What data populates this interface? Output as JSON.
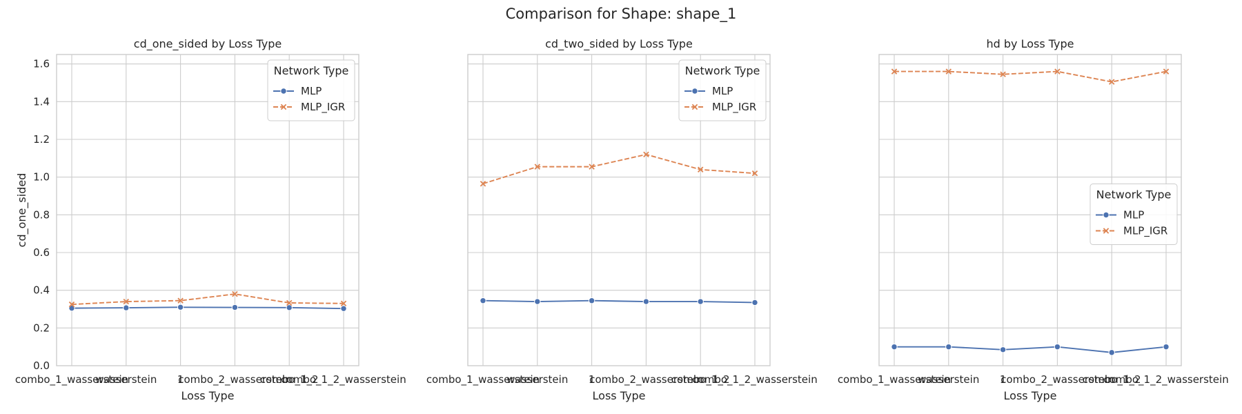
{
  "figure": {
    "suptitle": "Comparison for Shape: shape_1"
  },
  "chart_data": [
    {
      "type": "line",
      "title": "cd_one_sided by Loss Type",
      "xlabel": "Loss Type",
      "ylabel": "cd_one_sided",
      "categories": [
        "combo_1_wasserstein",
        "wasserstein",
        "1",
        "combo_2_wasserstein",
        "combo_1_2",
        "combo_1_2_wasserstein"
      ],
      "ylim": [
        0,
        1.65
      ],
      "yticks": [
        "0.0",
        "0.2",
        "0.4",
        "0.6",
        "0.8",
        "1.0",
        "1.2",
        "1.4",
        "1.6"
      ],
      "grid": true,
      "legend": {
        "title": "Network Type",
        "placement": "top-right"
      },
      "series": [
        {
          "name": "MLP",
          "values": [
            0.305,
            0.307,
            0.31,
            0.309,
            0.308,
            0.303
          ]
        },
        {
          "name": "MLP_IGR",
          "values": [
            0.325,
            0.34,
            0.345,
            0.38,
            0.333,
            0.33
          ]
        }
      ]
    },
    {
      "type": "line",
      "title": "cd_two_sided by Loss Type",
      "xlabel": "Loss Type",
      "ylabel": "",
      "categories": [
        "combo_1_wasserstein",
        "wasserstein",
        "1",
        "combo_2_wasserstein",
        "combo_1_2",
        "combo_1_2_wasserstein"
      ],
      "ylim": [
        0,
        1.65
      ],
      "grid": true,
      "legend": {
        "title": "Network Type",
        "placement": "top-right"
      },
      "series": [
        {
          "name": "MLP",
          "values": [
            0.345,
            0.34,
            0.345,
            0.34,
            0.34,
            0.335
          ]
        },
        {
          "name": "MLP_IGR",
          "values": [
            0.965,
            1.055,
            1.055,
            1.12,
            1.04,
            1.02
          ]
        }
      ]
    },
    {
      "type": "line",
      "title": "hd by Loss Type",
      "xlabel": "Loss Type",
      "ylabel": "",
      "categories": [
        "combo_1_wasserstein",
        "wasserstein",
        "1",
        "combo_2_wasserstein",
        "combo_1_2",
        "combo_1_2_wasserstein"
      ],
      "ylim": [
        0,
        1.65
      ],
      "grid": true,
      "legend": {
        "title": "Network Type",
        "placement": "center-right"
      },
      "series": [
        {
          "name": "MLP",
          "values": [
            0.1,
            0.1,
            0.085,
            0.1,
            0.07,
            0.1
          ]
        },
        {
          "name": "MLP_IGR",
          "values": [
            1.56,
            1.56,
            1.545,
            1.56,
            1.505,
            1.56
          ]
        }
      ]
    }
  ],
  "colors": {
    "MLP": "#4c72b0",
    "MLP_IGR": "#dd8452",
    "grid": "#cccccc",
    "spine": "#cccccc",
    "text": "#262626"
  }
}
